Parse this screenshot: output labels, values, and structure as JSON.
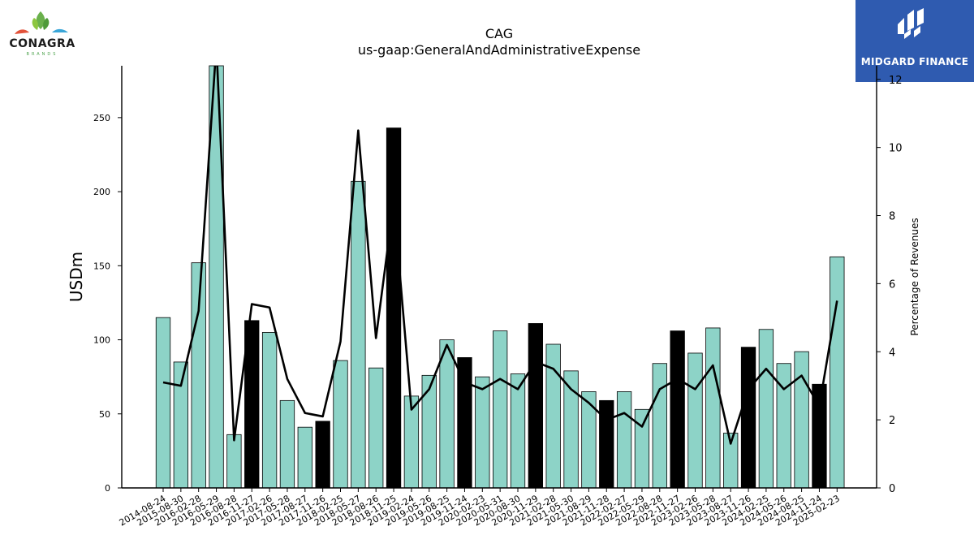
{
  "header": {
    "ticker": "CAG",
    "metric": "us-gaap:GeneralAndAdministrativeExpense"
  },
  "logos": {
    "left_brand": "CONAGRA",
    "left_brand_sub": "BRANDS",
    "right_brand": "MIDGARD FINANCE"
  },
  "colors": {
    "bar_quarter": "#8dd3c7",
    "bar_annual": "#000000",
    "line": "#000000",
    "finance_blue": "#2f5bb0"
  },
  "chart_data": {
    "type": "bar",
    "title": "CAG",
    "subtitle": "us-gaap:GeneralAndAdministrativeExpense",
    "xlabel": "",
    "ylabel": "USDm",
    "y2label": "Percentage of Revenues",
    "ylim": [
      0,
      285
    ],
    "y2lim": [
      0,
      12.4
    ],
    "yticks": [
      0,
      50,
      100,
      150,
      200,
      250
    ],
    "y2ticks": [
      0,
      2,
      4,
      6,
      8,
      10,
      12
    ],
    "categories": [
      "2014-08-24",
      "2015-08-30",
      "2016-02-28",
      "2016-05-29",
      "2016-08-28",
      "2016-11-27",
      "2017-02-26",
      "2017-05-28",
      "2017-08-27",
      "2017-11-26",
      "2018-02-25",
      "2018-05-27",
      "2018-08-26",
      "2018-11-25",
      "2019-02-24",
      "2019-05-26",
      "2019-08-25",
      "2019-11-24",
      "2020-02-23",
      "2020-05-31",
      "2020-08-30",
      "2020-11-29",
      "2021-02-28",
      "2021-05-30",
      "2021-08-29",
      "2021-11-28",
      "2022-02-27",
      "2022-05-29",
      "2022-08-28",
      "2022-11-27",
      "2023-02-26",
      "2023-05-28",
      "2023-08-27",
      "2023-11-26",
      "2024-02-25",
      "2024-05-26",
      "2024-08-25",
      "2024-11-24",
      "2025-02-23"
    ],
    "series": [
      {
        "values": [
          115,
          85,
          152,
          285,
          36,
          113,
          105,
          59,
          41,
          45,
          86,
          207,
          81,
          243,
          62,
          76,
          100,
          88,
          75,
          106,
          77,
          111,
          97,
          79,
          65,
          59,
          65,
          53,
          84,
          106,
          91,
          108,
          37,
          95,
          107,
          84,
          92,
          70,
          156
        ],
        "highlight": [
          false,
          false,
          false,
          false,
          false,
          true,
          false,
          false,
          false,
          true,
          false,
          false,
          false,
          true,
          false,
          false,
          false,
          true,
          false,
          false,
          false,
          true,
          false,
          false,
          false,
          true,
          false,
          false,
          false,
          true,
          false,
          false,
          false,
          true,
          false,
          false,
          false,
          true,
          false
        ]
      },
      {
        "axis": "right",
        "values": [
          3.1,
          3.0,
          5.2,
          13.0,
          1.4,
          5.4,
          5.3,
          3.2,
          2.2,
          2.1,
          4.3,
          10.5,
          4.4,
          8.4,
          2.3,
          2.9,
          4.2,
          3.1,
          2.9,
          3.2,
          2.9,
          3.7,
          3.5,
          2.9,
          2.5,
          2.0,
          2.2,
          1.8,
          2.9,
          3.2,
          2.9,
          3.6,
          1.3,
          2.9,
          3.5,
          2.9,
          3.3,
          2.4,
          5.5
        ]
      }
    ],
    "grid": false,
    "legend": "none"
  }
}
